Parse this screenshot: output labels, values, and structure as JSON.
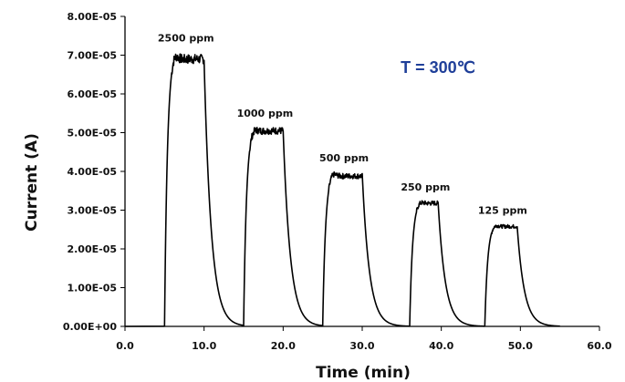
{
  "chart_data": {
    "type": "line",
    "xlabel": "Time (min)",
    "ylabel": "Current (A)",
    "xlim": [
      0,
      60
    ],
    "ylim": [
      0,
      8e-05
    ],
    "x_ticks": [
      "0.0",
      "10.0",
      "20.0",
      "30.0",
      "40.0",
      "50.0",
      "60.0"
    ],
    "y_ticks": [
      "0.00E+00",
      "1.00E-05",
      "2.00E-05",
      "3.00E-05",
      "4.00E-05",
      "5.00E-05",
      "6.00E-05",
      "7.00E-05",
      "8.00E-05"
    ],
    "grid": false,
    "line_color": "#000000",
    "annotation": {
      "text": "T = 300℃",
      "color": "#1f3f99"
    },
    "pulses": [
      {
        "label": "2500 ppm",
        "on": 5.0,
        "off": 10.0,
        "peak": 7.1e-05,
        "plateau": 6.9e-05
      },
      {
        "label": "1000 ppm",
        "on": 15.0,
        "off": 20.0,
        "peak": 5.15e-05,
        "plateau": 5.05e-05
      },
      {
        "label": "500 ppm",
        "on": 25.0,
        "off": 30.0,
        "peak": 4e-05,
        "plateau": 3.88e-05
      },
      {
        "label": "250 ppm",
        "on": 36.0,
        "off": 39.6,
        "peak": 3.25e-05,
        "plateau": 3.18e-05
      },
      {
        "label": "125 ppm",
        "on": 45.5,
        "off": 49.6,
        "peak": 2.65e-05,
        "plateau": 2.58e-05
      }
    ],
    "x_end": 55.0,
    "baseline": 0.0
  }
}
